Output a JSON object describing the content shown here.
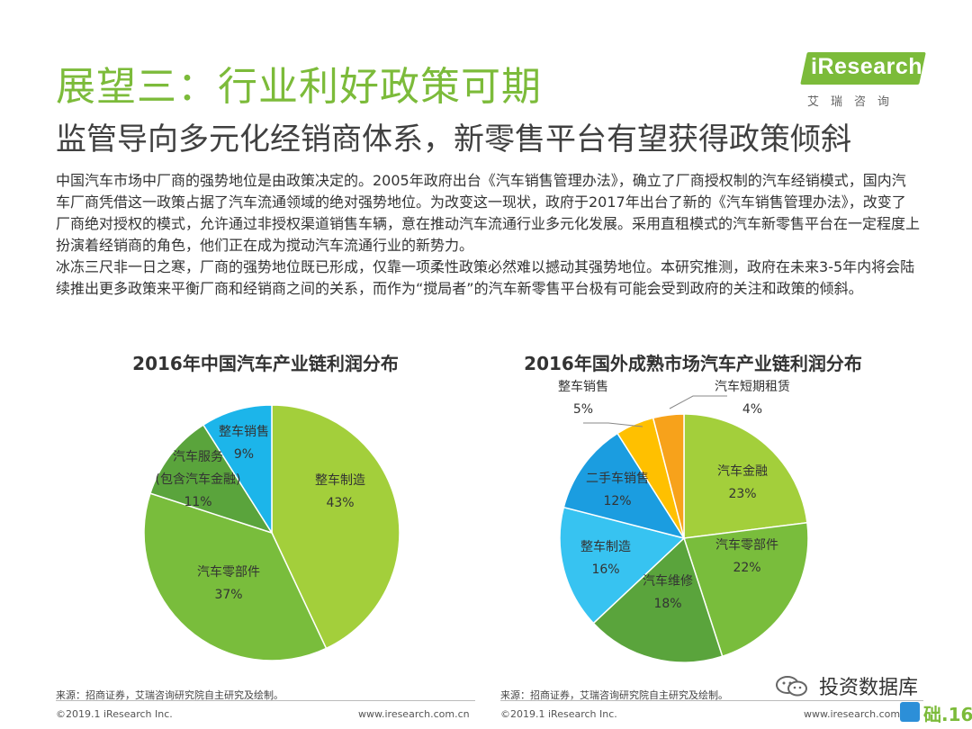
{
  "header": {
    "title": "展望三：行业利好政策可期",
    "subtitle": "监管导向多元化经销商体系，新零售平台有望获得政策倾斜"
  },
  "logo": {
    "brand": "iResearch",
    "sub": "艾瑞咨询",
    "color": "#7cbb3a"
  },
  "body": {
    "paragraphs": [
      "中国汽车市场中厂商的强势地位是由政策决定的。2005年政府出台《汽车销售管理办法》，确立了厂商授权制的汽车经销模式，国内汽车厂商凭借这一政策占据了汽车流通领域的绝对强势地位。为改变这一现状，政府于2017年出台了新的《汽车销售管理办法》，改变了厂商绝对授权的模式，允许通过非授权渠道销售车辆，意在推动汽车流通行业多元化发展。采用直租模式的汽车新零售平台在一定程度上扮演着经销商的角色，他们正在成为搅动汽车流通行业的新势力。",
      "冰冻三尺非一日之寒，厂商的强势地位既已形成，仅靠一项柔性政策必然难以撼动其强势地位。本研究推测，政府在未来3-5年内将会陆续推出更多政策来平衡厂商和经销商之间的关系，而作为“搅局者”的汽车新零售平台极有可能会受到政府的关注和政策的倾斜。"
    ]
  },
  "chart_data": [
    {
      "type": "pie",
      "title": "2016年中国汽车产业链利润分布",
      "slices": [
        {
          "name": "整车制造",
          "value": 43,
          "label": "43%",
          "color": "#a3cf3b"
        },
        {
          "name": "汽车零部件",
          "value": 37,
          "label": "37%",
          "color": "#79bd3c"
        },
        {
          "name": "汽车服务\n(包含汽车金融)",
          "value": 11,
          "label": "11%",
          "color": "#5aa43c"
        },
        {
          "name": "整车销售",
          "value": 9,
          "label": "9%",
          "color": "#1cb5ea"
        }
      ]
    },
    {
      "type": "pie",
      "title": "2016年国外成熟市场汽车产业链利润分布",
      "slices": [
        {
          "name": "汽车金融",
          "value": 23,
          "label": "23%",
          "color": "#a3cf3b"
        },
        {
          "name": "汽车零部件",
          "value": 22,
          "label": "22%",
          "color": "#79bd3c"
        },
        {
          "name": "汽车维修",
          "value": 18,
          "label": "18%",
          "color": "#5aa43c"
        },
        {
          "name": "整车制造",
          "value": 16,
          "label": "16%",
          "color": "#37c3f1"
        },
        {
          "name": "二手车销售",
          "value": 12,
          "label": "12%",
          "color": "#1b9de0"
        },
        {
          "name": "整车销售",
          "value": 5,
          "label": "5%",
          "color": "#ffc000"
        },
        {
          "name": "汽车短期租赁",
          "value": 4,
          "label": "4%",
          "color": "#f7a21b"
        }
      ]
    }
  ],
  "footer": {
    "source_left": "来源：招商证券，艾瑞咨询研究院自主研究及绘制。",
    "source_right": "来源：招商证券，艾瑞咨询研究院自主研究及绘制。",
    "copyright_left": "©2019.1 iResearch Inc.",
    "url_left": "www.iresearch.com.cn",
    "copyright_right": "©2019.1 iResearch Inc.",
    "url_right": "www.iresearch.com.cn",
    "watermark": "投资数据库",
    "page_mark": "础.16"
  }
}
